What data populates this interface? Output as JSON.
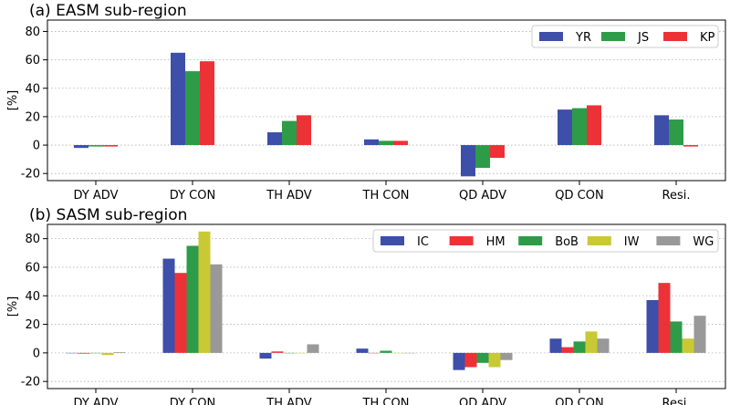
{
  "chart_data": [
    {
      "type": "bar",
      "title": "(a) EASM sub-region",
      "ylabel": "[%]",
      "xlabel": "",
      "ylim": [
        -25,
        88
      ],
      "yticks": [
        -20,
        0,
        20,
        40,
        60,
        80
      ],
      "grid": "horizontal dotted",
      "legend_position": "top-right",
      "categories": [
        "DY ADV",
        "DY CON",
        "TH ADV",
        "TH CON",
        "QD ADV",
        "QD CON",
        "Resi."
      ],
      "series": [
        {
          "name": "YR",
          "color": "#3d4fa8",
          "values": [
            -2,
            65,
            9,
            4,
            -22,
            25,
            21
          ]
        },
        {
          "name": "JS",
          "color": "#2e9b48",
          "values": [
            -1,
            52,
            17,
            3,
            -16,
            26,
            18
          ]
        },
        {
          "name": "KP",
          "color": "#ec3237",
          "values": [
            -1,
            59,
            21,
            3,
            -9,
            28,
            -1
          ]
        }
      ]
    },
    {
      "type": "bar",
      "title": "(b) SASM sub-region",
      "ylabel": "[%]",
      "xlabel": "",
      "ylim": [
        -25,
        90
      ],
      "yticks": [
        -20,
        0,
        20,
        40,
        60,
        80
      ],
      "grid": "horizontal dotted",
      "legend_position": "top-right",
      "categories": [
        "DY ADV",
        "DY CON",
        "TH ADV",
        "TH CON",
        "QD ADV",
        "QD CON",
        "Resi."
      ],
      "series": [
        {
          "name": "IC",
          "color": "#3d4fa8",
          "values": [
            0,
            66,
            -4,
            3,
            -12,
            10,
            37
          ]
        },
        {
          "name": "HM",
          "color": "#ec3237",
          "values": [
            -0.5,
            56,
            1,
            0,
            -10,
            4,
            49
          ]
        },
        {
          "name": "BoB",
          "color": "#2e9b48",
          "values": [
            0,
            75,
            0,
            1.5,
            -7,
            8,
            22
          ]
        },
        {
          "name": "IW",
          "color": "#c9c935",
          "values": [
            -1.5,
            85,
            0,
            0,
            -10,
            15,
            10
          ]
        },
        {
          "name": "WG",
          "color": "#999999",
          "values": [
            0.5,
            62,
            6,
            0,
            -5,
            10,
            26
          ]
        }
      ]
    }
  ]
}
